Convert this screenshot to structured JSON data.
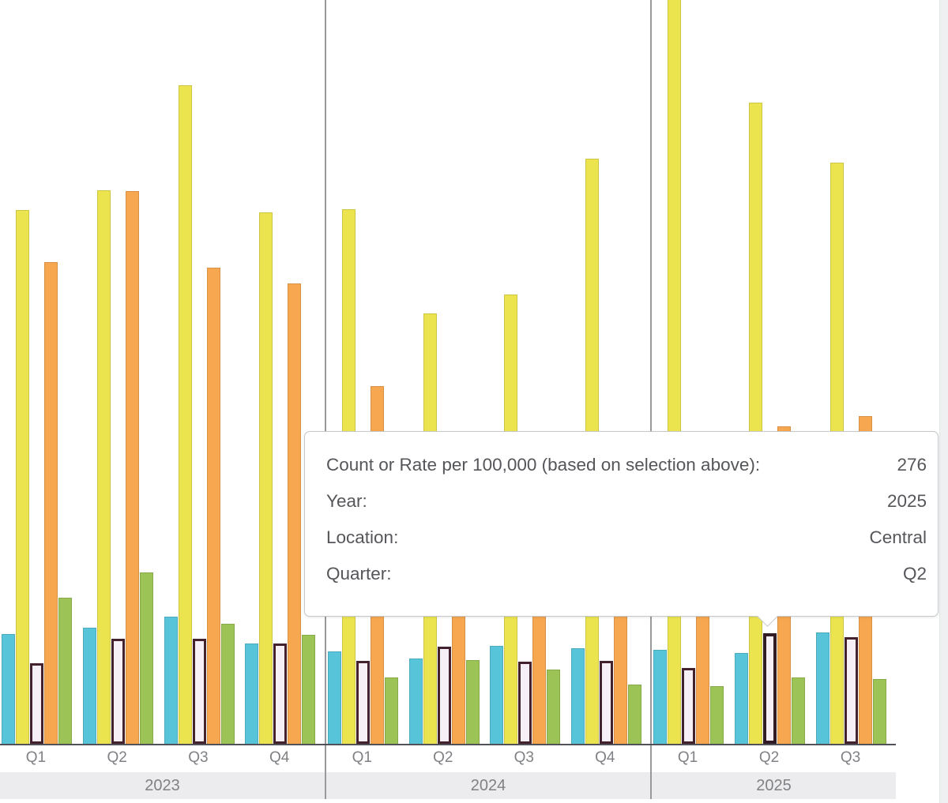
{
  "tooltip": {
    "rows": [
      {
        "label": "Count or Rate per 100,000 (based on selection above):",
        "value": "276"
      },
      {
        "label": "Year:",
        "value": "2025"
      },
      {
        "label": "Location:",
        "value": "Central"
      },
      {
        "label": "Quarter:",
        "value": "Q2"
      }
    ]
  },
  "colors": {
    "axis_line": "#515257",
    "panel_divider": "#97999b",
    "year_band_bg": "#ececee",
    "tick_label": "#7f8184",
    "tooltip_border": "#c6c8c9",
    "tooltip_text": "#55565a",
    "right_strip_bg": "#eef0f1"
  },
  "chart_data": {
    "type": "bar",
    "title": "",
    "xlabel": "",
    "ylabel": "Count or Rate per 100,000",
    "y_axis_visible": false,
    "ylim": [
      0,
      1860
    ],
    "grid": false,
    "legend_visible": false,
    "x_axis": {
      "groups": [
        {
          "year": "2023",
          "quarters": [
            "Q1",
            "Q2",
            "Q3",
            "Q4"
          ]
        },
        {
          "year": "2024",
          "quarters": [
            "Q1",
            "Q2",
            "Q3",
            "Q4"
          ]
        },
        {
          "year": "2025",
          "quarters": [
            "Q1",
            "Q2",
            "Q3"
          ]
        }
      ]
    },
    "categories": [
      "2023 Q1",
      "2023 Q2",
      "2023 Q3",
      "2023 Q4",
      "2024 Q1",
      "2024 Q2",
      "2024 Q3",
      "2024 Q4",
      "2025 Q1",
      "2025 Q2",
      "2025 Q3"
    ],
    "series": [
      {
        "name": "blue",
        "color": "#58c4da",
        "values": [
          274,
          290,
          317,
          250,
          231,
          213,
          244,
          238,
          235,
          227,
          278
        ]
      },
      {
        "name": "yellow",
        "color": "#ece44f",
        "values": [
          1332,
          1382,
          1644,
          1326,
          1334,
          1074,
          1121,
          1461,
          1950,
          1600,
          1451
        ]
      },
      {
        "name": "outlined-white",
        "color": "#f6eff5",
        "border_color": "#44222d",
        "values": [
          201,
          262,
          262,
          250,
          207,
          242,
          205,
          207,
          189,
          276,
          266
        ]
      },
      {
        "name": "orange",
        "color": "#f6a74f",
        "values": [
          1202,
          1380,
          1188,
          1149,
          893,
          700,
          660,
          620,
          700,
          792,
          818
        ]
      },
      {
        "name": "green",
        "color": "#9cc355",
        "values": [
          365,
          428,
          300,
          272,
          166,
          209,
          185,
          148,
          144,
          166,
          162
        ]
      }
    ],
    "hovered_bar": {
      "series": "outlined-white",
      "year": "2025",
      "quarter": "Q2",
      "value": 276
    }
  }
}
